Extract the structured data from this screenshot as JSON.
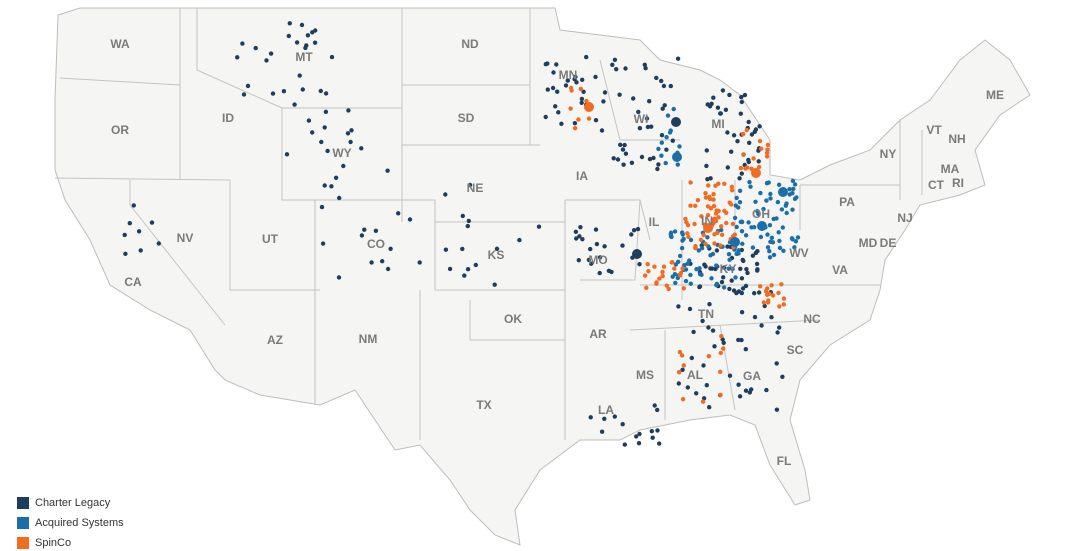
{
  "map": {
    "states": [
      "WA",
      "MT",
      "ND",
      "MN",
      "OR",
      "ID",
      "WY",
      "SD",
      "WI",
      "MI",
      "NY",
      "VT",
      "NH",
      "ME",
      "MA",
      "RI",
      "CT",
      "NE",
      "IA",
      "PA",
      "NJ",
      "NV",
      "UT",
      "CO",
      "KS",
      "IL",
      "IN",
      "OH",
      "MD",
      "DE",
      "WV",
      "VA",
      "CA",
      "MO",
      "KY",
      "AZ",
      "NM",
      "OK",
      "AR",
      "TN",
      "NC",
      "SC",
      "MS",
      "AL",
      "GA",
      "TX",
      "LA",
      "FL"
    ],
    "legend": [
      {
        "name": "Charter Legacy",
        "color": "#1f3d5c"
      },
      {
        "name": "Acquired Systems",
        "color": "#1a6fa8"
      },
      {
        "name": "SpinCo",
        "color": "#f26b21"
      }
    ]
  }
}
